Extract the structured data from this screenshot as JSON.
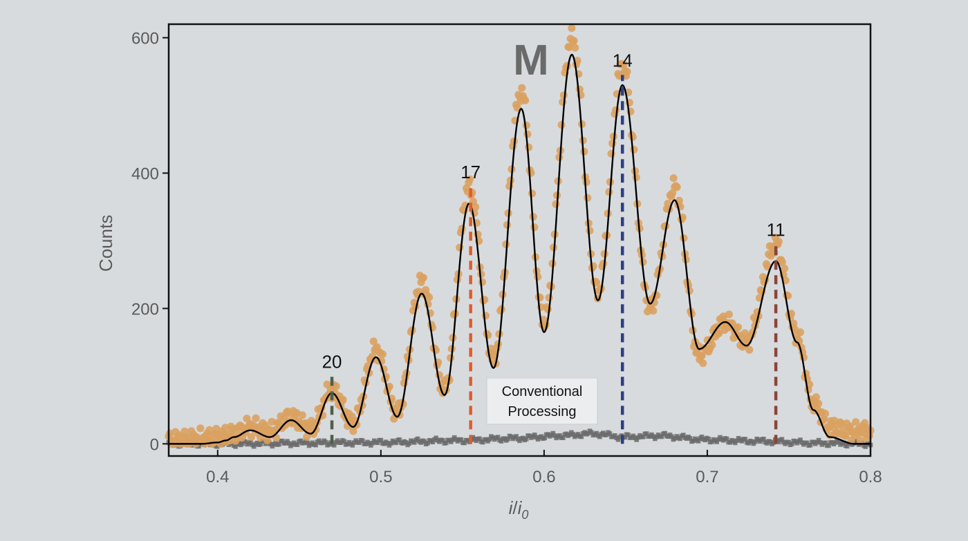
{
  "chart_data": {
    "type": "scatter",
    "panel_letter": "M",
    "xlabel_main": "i",
    "xlabel_sep": "/",
    "xlabel_denominator": "i",
    "xlabel_subscript": "0",
    "ylabel": "Counts",
    "xlim": [
      0.37,
      0.8
    ],
    "ylim": [
      -18,
      620
    ],
    "x_ticks": [
      0.4,
      0.5,
      0.6,
      0.7,
      0.8
    ],
    "x_tick_labels": [
      "0.4",
      "0.5",
      "0.6",
      "0.7",
      "0.8"
    ],
    "y_ticks": [
      0,
      200,
      400,
      600
    ],
    "y_tick_labels": [
      "0",
      "200",
      "400",
      "600"
    ],
    "grid": false,
    "colors": {
      "scatter": "#d9a160",
      "fit": "#000000",
      "conventional": "#6b6b6b",
      "peak_20": "#4f5f4a",
      "peak_17": "#e05c2c",
      "peak_14": "#2c3f84",
      "peak_11": "#8a4538"
    },
    "fit_curve": {
      "name": "fit",
      "x": [
        0.37,
        0.38,
        0.39,
        0.4,
        0.405,
        0.41,
        0.42,
        0.432,
        0.445,
        0.457,
        0.47,
        0.483,
        0.497,
        0.51,
        0.525,
        0.539,
        0.554,
        0.569,
        0.586,
        0.6,
        0.617,
        0.633,
        0.648,
        0.665,
        0.68,
        0.695,
        0.711,
        0.724,
        0.742,
        0.755,
        0.765,
        0.775,
        0.79,
        0.8
      ],
      "y": [
        0,
        0,
        0,
        2,
        5,
        10,
        20,
        10,
        35,
        15,
        75,
        25,
        128,
        40,
        222,
        72,
        355,
        112,
        495,
        165,
        575,
        212,
        530,
        207,
        360,
        140,
        180,
        145,
        270,
        150,
        50,
        10,
        0,
        0
      ]
    },
    "measured_points": {
      "name": "measured",
      "x": [
        0.37,
        0.38,
        0.39,
        0.4,
        0.41,
        0.42,
        0.432,
        0.445,
        0.457,
        0.47,
        0.483,
        0.497,
        0.51,
        0.525,
        0.539,
        0.554,
        0.569,
        0.586,
        0.6,
        0.617,
        0.633,
        0.648,
        0.665,
        0.68,
        0.695,
        0.711,
        0.724,
        0.742,
        0.755,
        0.765,
        0.775,
        0.79,
        0.8
      ],
      "y": [
        5,
        6,
        8,
        10,
        15,
        25,
        18,
        40,
        22,
        80,
        30,
        140,
        45,
        240,
        80,
        380,
        125,
        520,
        180,
        600,
        225,
        560,
        200,
        380,
        130,
        180,
        150,
        295,
        160,
        60,
        25,
        18,
        20
      ]
    },
    "conventional_processing": {
      "name": "Conventional Processing",
      "x": [
        0.37,
        0.4,
        0.45,
        0.5,
        0.55,
        0.58,
        0.61,
        0.63,
        0.65,
        0.67,
        0.7,
        0.73,
        0.77,
        0.8
      ],
      "y": [
        0,
        0,
        1,
        2,
        5,
        8,
        12,
        15,
        10,
        12,
        6,
        4,
        1,
        0
      ]
    },
    "peak_markers": [
      {
        "label": "20",
        "x": 0.47,
        "y": 100,
        "color": "#4f5f4a"
      },
      {
        "label": "17",
        "x": 0.555,
        "y": 380,
        "color": "#e05c2c"
      },
      {
        "label": "14",
        "x": 0.648,
        "y": 545,
        "color": "#2c3f84"
      },
      {
        "label": "11",
        "x": 0.742,
        "y": 295,
        "color": "#8a4538"
      }
    ],
    "legend": {
      "line1": "Conventional",
      "line2": "Processing"
    }
  }
}
